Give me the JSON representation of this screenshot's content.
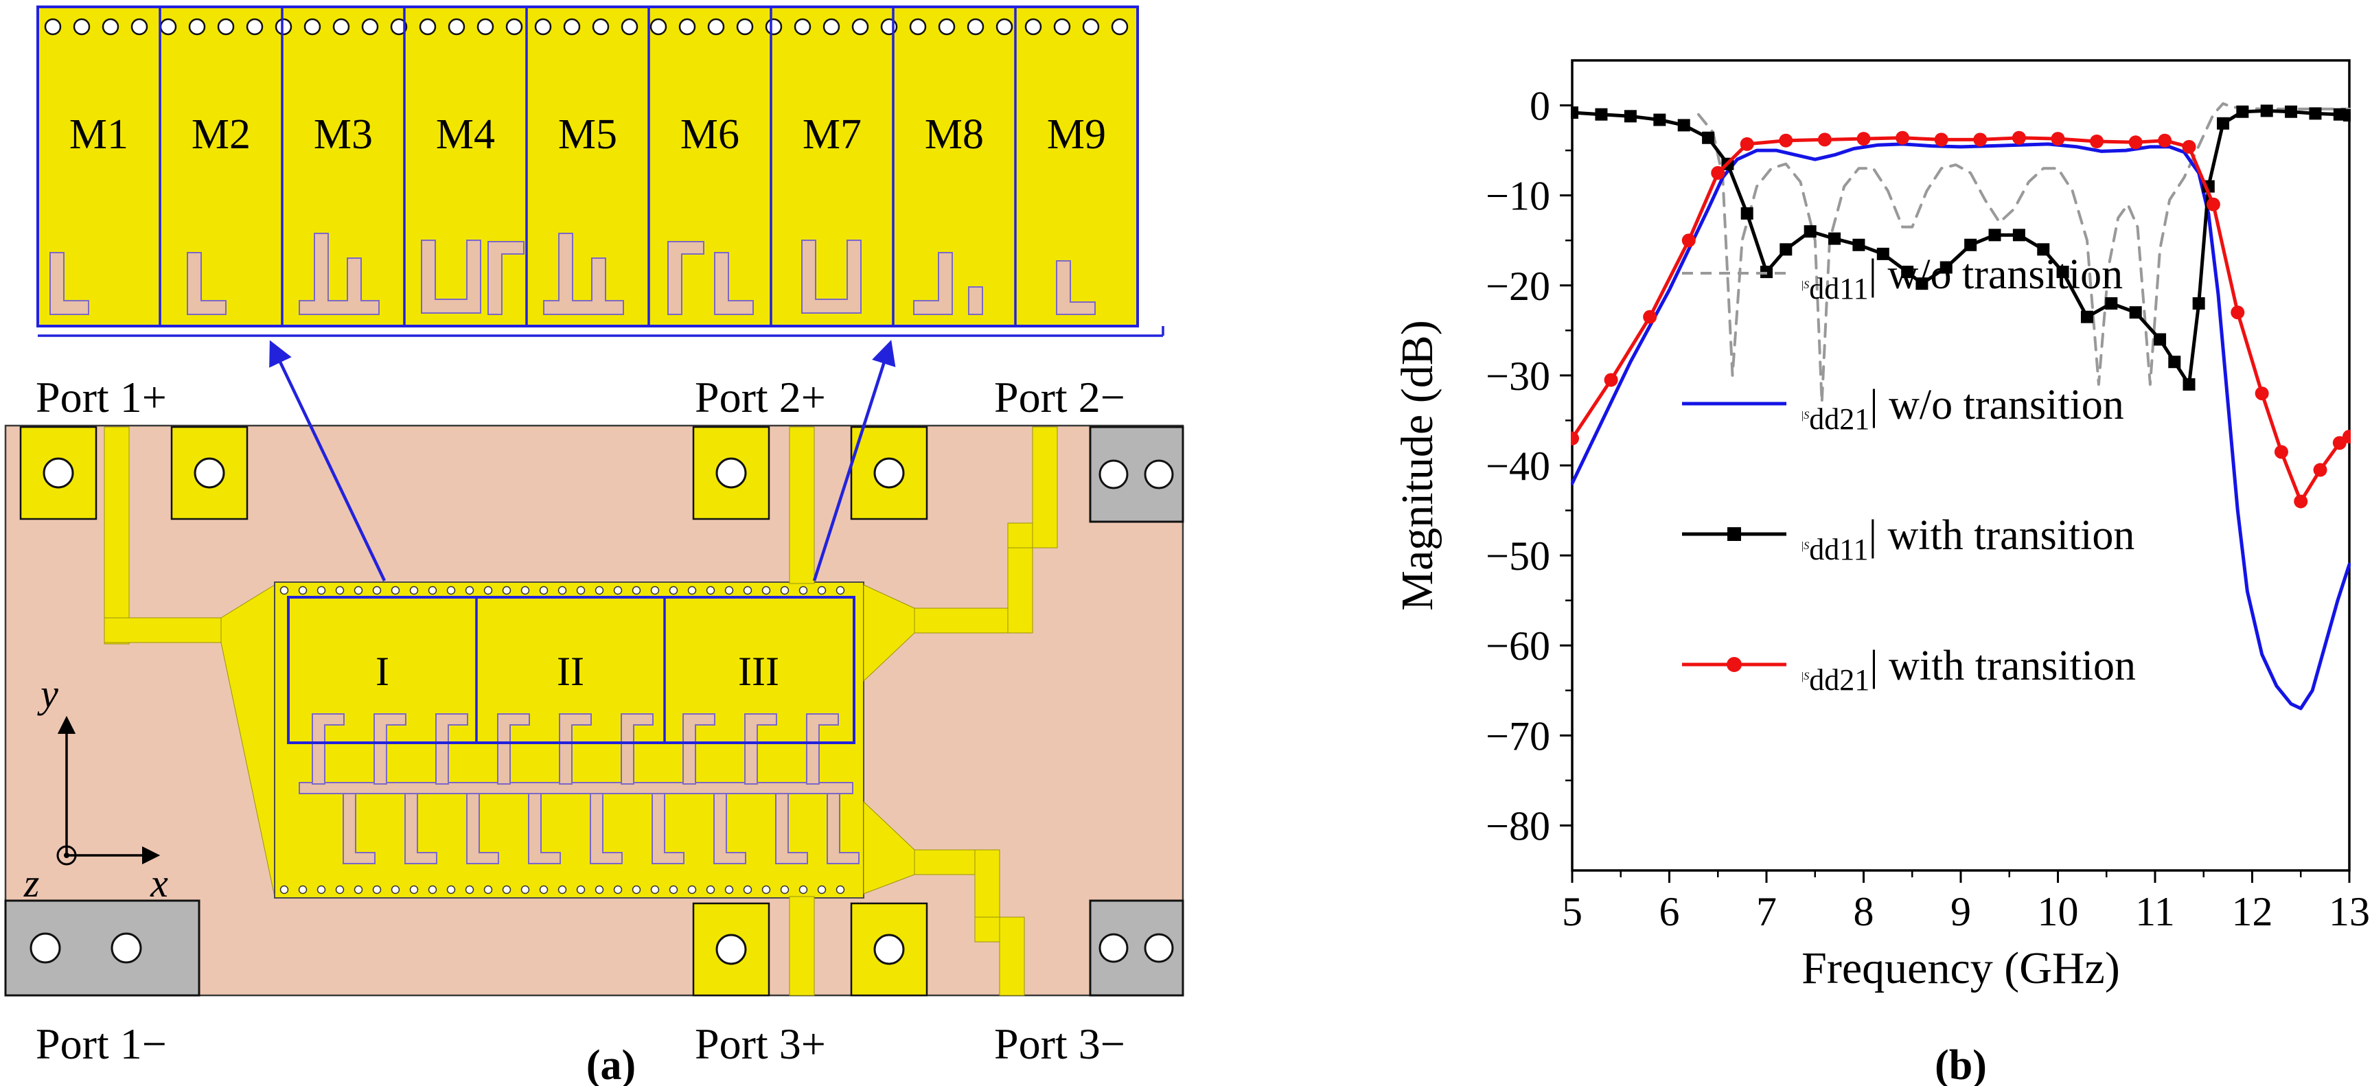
{
  "panel_a": {
    "caption": "(a)",
    "modules": [
      "M1",
      "M2",
      "M3",
      "M4",
      "M5",
      "M6",
      "M7",
      "M8",
      "M9"
    ],
    "sections": [
      "I",
      "II",
      "III"
    ],
    "ports": {
      "port1_plus": "Port 1+",
      "port2_plus": "Port 2+",
      "port2_minus": "Port 2−",
      "port1_minus": "Port 1−",
      "port3_plus": "Port 3+",
      "port3_minus": "Port 3−"
    },
    "axes": {
      "x": "x",
      "y": "y",
      "z": "z"
    },
    "colors": {
      "metal": "#f2e600",
      "substrate": "#edc6b1",
      "pattern": "#e9c0a8",
      "outline": "#2222dd",
      "connector": "#b5b5b5"
    }
  },
  "panel_b": {
    "caption": "(b)"
  },
  "chart_data": {
    "type": "line",
    "title": "",
    "xlabel": "Frequency (GHz)",
    "ylabel": "Magnitude (dB)",
    "xlim": [
      5,
      13
    ],
    "ylim": [
      -85,
      5
    ],
    "x_major_ticks": [
      5,
      6,
      7,
      8,
      9,
      10,
      11,
      12,
      13
    ],
    "x_tick_labels": [
      "5",
      "6",
      "7",
      "8",
      "9",
      "10",
      "11",
      "12",
      "13"
    ],
    "x_minor_step": 0.5,
    "y_major_ticks": [
      0,
      -10,
      -20,
      -30,
      -40,
      -50,
      -60,
      -70,
      -80
    ],
    "y_tick_labels": [
      "0",
      "−10",
      "−20",
      "−30",
      "−40",
      "−50",
      "−60",
      "−70",
      "−80"
    ],
    "y_minor_step": 5,
    "grid": false,
    "legend_position": "inside center-left",
    "series": [
      {
        "id": "sdd11-wo-transition",
        "name": "|Sdd11| w/o transition",
        "legend": {
          "pre": "|",
          "sym": "S",
          "sub": "dd11",
          "post": "| w/o transition"
        },
        "color": "#999999",
        "line": "dashed",
        "marker": "none",
        "width": 4,
        "points": [
          [
            6.3,
            -1
          ],
          [
            6.45,
            -3
          ],
          [
            6.55,
            -8
          ],
          [
            6.65,
            -30
          ],
          [
            6.75,
            -15
          ],
          [
            6.9,
            -9
          ],
          [
            7.05,
            -7
          ],
          [
            7.2,
            -6.5
          ],
          [
            7.35,
            -8.5
          ],
          [
            7.5,
            -15
          ],
          [
            7.57,
            -33
          ],
          [
            7.65,
            -15
          ],
          [
            7.8,
            -9
          ],
          [
            7.95,
            -7
          ],
          [
            8.1,
            -7
          ],
          [
            8.25,
            -9.5
          ],
          [
            8.4,
            -13.5
          ],
          [
            8.5,
            -13.5
          ],
          [
            8.65,
            -9.5
          ],
          [
            8.8,
            -7
          ],
          [
            8.95,
            -6.6
          ],
          [
            9.1,
            -7.5
          ],
          [
            9.25,
            -10.5
          ],
          [
            9.4,
            -13
          ],
          [
            9.55,
            -11.5
          ],
          [
            9.7,
            -8.5
          ],
          [
            9.85,
            -7
          ],
          [
            10.0,
            -7
          ],
          [
            10.15,
            -9.5
          ],
          [
            10.3,
            -15
          ],
          [
            10.42,
            -31
          ],
          [
            10.52,
            -18
          ],
          [
            10.62,
            -12.5
          ],
          [
            10.72,
            -11
          ],
          [
            10.82,
            -13.5
          ],
          [
            10.95,
            -31
          ],
          [
            11.05,
            -16
          ],
          [
            11.15,
            -10.5
          ],
          [
            11.3,
            -8
          ],
          [
            11.45,
            -4.5
          ],
          [
            11.6,
            -1
          ],
          [
            11.7,
            0.2
          ],
          [
            11.8,
            -0.2
          ],
          [
            12.1,
            -0.4
          ],
          [
            12.5,
            -0.4
          ],
          [
            13,
            -0.4
          ]
        ]
      },
      {
        "id": "sdd21-wo-transition",
        "name": "|Sdd21| w/o transition",
        "legend": {
          "pre": "|",
          "sym": "S",
          "sub": "dd21",
          "post": "| w/o transition"
        },
        "color": "#1414e6",
        "line": "solid",
        "marker": "none",
        "width": 5,
        "points": [
          [
            5,
            -42
          ],
          [
            5.2,
            -37.5
          ],
          [
            5.4,
            -33
          ],
          [
            5.6,
            -28.5
          ],
          [
            5.8,
            -24.5
          ],
          [
            6,
            -20.5
          ],
          [
            6.2,
            -16
          ],
          [
            6.4,
            -11.5
          ],
          [
            6.55,
            -8
          ],
          [
            6.7,
            -6
          ],
          [
            6.9,
            -5
          ],
          [
            7.1,
            -5
          ],
          [
            7.3,
            -5.5
          ],
          [
            7.5,
            -6
          ],
          [
            7.7,
            -5.5
          ],
          [
            7.9,
            -4.8
          ],
          [
            8.15,
            -4.4
          ],
          [
            8.4,
            -4.3
          ],
          [
            8.7,
            -4.5
          ],
          [
            9,
            -4.6
          ],
          [
            9.3,
            -4.5
          ],
          [
            9.6,
            -4.4
          ],
          [
            9.9,
            -4.3
          ],
          [
            10.2,
            -4.6
          ],
          [
            10.45,
            -5.1
          ],
          [
            10.7,
            -5
          ],
          [
            10.95,
            -4.6
          ],
          [
            11.15,
            -4.6
          ],
          [
            11.3,
            -5.2
          ],
          [
            11.45,
            -7.5
          ],
          [
            11.55,
            -12
          ],
          [
            11.65,
            -21
          ],
          [
            11.75,
            -33
          ],
          [
            11.85,
            -45
          ],
          [
            11.95,
            -54
          ],
          [
            12.1,
            -61
          ],
          [
            12.25,
            -64.5
          ],
          [
            12.4,
            -66.5
          ],
          [
            12.5,
            -67
          ],
          [
            12.62,
            -65
          ],
          [
            12.75,
            -60
          ],
          [
            12.88,
            -55
          ],
          [
            13,
            -51
          ]
        ]
      },
      {
        "id": "sdd11-with-transition",
        "name": "|Sdd11| with transition",
        "legend": {
          "pre": "|",
          "sym": "S",
          "sub": "dd11",
          "post": "| with transition"
        },
        "color": "#000000",
        "line": "solid",
        "marker": "square",
        "width": 5,
        "points": [
          [
            5,
            -0.8
          ],
          [
            5.3,
            -1
          ],
          [
            5.6,
            -1.2
          ],
          [
            5.9,
            -1.6
          ],
          [
            6.15,
            -2.2
          ],
          [
            6.4,
            -3.6
          ],
          [
            6.6,
            -6.5
          ],
          [
            6.8,
            -12
          ],
          [
            7,
            -18.5
          ],
          [
            7.2,
            -16
          ],
          [
            7.45,
            -14
          ],
          [
            7.7,
            -14.8
          ],
          [
            7.95,
            -15.5
          ],
          [
            8.2,
            -16.5
          ],
          [
            8.45,
            -18.5
          ],
          [
            8.6,
            -19.8
          ],
          [
            8.85,
            -18
          ],
          [
            9.1,
            -15.5
          ],
          [
            9.35,
            -14.4
          ],
          [
            9.6,
            -14.4
          ],
          [
            9.85,
            -16
          ],
          [
            10.05,
            -18.5
          ],
          [
            10.3,
            -23.5
          ],
          [
            10.55,
            -22
          ],
          [
            10.8,
            -23
          ],
          [
            11.05,
            -26
          ],
          [
            11.2,
            -28.5
          ],
          [
            11.35,
            -31
          ],
          [
            11.45,
            -22
          ],
          [
            11.55,
            -9
          ],
          [
            11.7,
            -2
          ],
          [
            11.9,
            -0.7
          ],
          [
            12.15,
            -0.6
          ],
          [
            12.4,
            -0.7
          ],
          [
            12.65,
            -0.9
          ],
          [
            12.9,
            -1
          ],
          [
            13,
            -1.1
          ]
        ]
      },
      {
        "id": "sdd21-with-transition",
        "name": "|Sdd21| with transition",
        "legend": {
          "pre": "|",
          "sym": "S",
          "sub": "dd21",
          "post": "| with transition"
        },
        "color": "#ee1111",
        "line": "solid",
        "marker": "circle",
        "width": 5,
        "points": [
          [
            5,
            -37
          ],
          [
            5.4,
            -30.5
          ],
          [
            5.8,
            -23.5
          ],
          [
            6.2,
            -15
          ],
          [
            6.5,
            -7.5
          ],
          [
            6.8,
            -4.3
          ],
          [
            7.2,
            -3.9
          ],
          [
            7.6,
            -3.8
          ],
          [
            8,
            -3.7
          ],
          [
            8.4,
            -3.6
          ],
          [
            8.8,
            -3.8
          ],
          [
            9.2,
            -3.8
          ],
          [
            9.6,
            -3.6
          ],
          [
            10,
            -3.7
          ],
          [
            10.4,
            -4
          ],
          [
            10.8,
            -4.1
          ],
          [
            11.1,
            -3.9
          ],
          [
            11.35,
            -4.6
          ],
          [
            11.6,
            -11
          ],
          [
            11.85,
            -23
          ],
          [
            12.1,
            -32
          ],
          [
            12.3,
            -38.5
          ],
          [
            12.5,
            -44
          ],
          [
            12.7,
            -40.5
          ],
          [
            12.9,
            -37.5
          ],
          [
            13,
            -36.8
          ]
        ]
      }
    ]
  }
}
